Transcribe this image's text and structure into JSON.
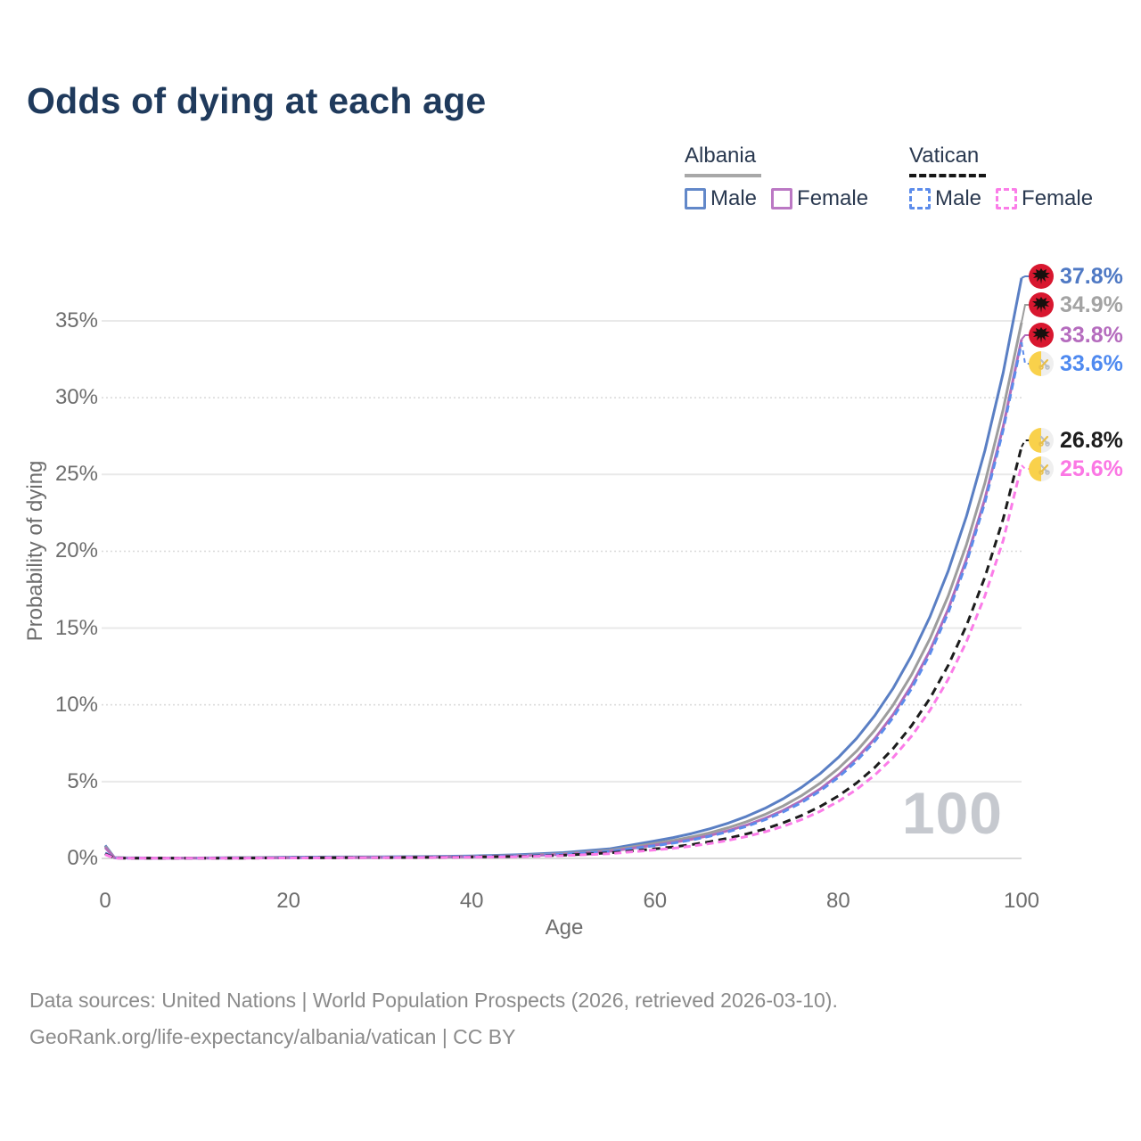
{
  "title": "Odds of dying at each age",
  "legend": {
    "groups": [
      {
        "label": "Albania",
        "line_style": "solid",
        "line_color": "#a8a8a8",
        "items": [
          {
            "label": "Male",
            "color": "#6288c9"
          },
          {
            "label": "Female",
            "color": "#bb78c4"
          }
        ]
      },
      {
        "label": "Vatican",
        "line_style": "dashed",
        "line_color": "#161616",
        "items": [
          {
            "label": "Male",
            "color": "#5c8ceb"
          },
          {
            "label": "Female",
            "color": "#fb7ce8"
          }
        ]
      }
    ]
  },
  "axes": {
    "x_label": "Age",
    "y_label": "Probability of dying",
    "x_ticks": [
      0,
      20,
      40,
      60,
      80,
      100
    ],
    "y_ticks": [
      "0%",
      "5%",
      "10%",
      "15%",
      "20%",
      "25%",
      "30%",
      "35%"
    ]
  },
  "watermark": "100",
  "chart_data": {
    "type": "line",
    "title": "Odds of dying at each age",
    "xlabel": "Age",
    "ylabel": "Probability of dying",
    "xlim": [
      0,
      100
    ],
    "ylim_pct": [
      0,
      38
    ],
    "grid": "horizontal-only",
    "legend_position": "top-right",
    "x": [
      0,
      1,
      2,
      5,
      10,
      15,
      20,
      25,
      30,
      35,
      40,
      45,
      50,
      55,
      60,
      62,
      64,
      66,
      68,
      70,
      72,
      74,
      76,
      78,
      80,
      82,
      84,
      86,
      88,
      90,
      92,
      94,
      96,
      98,
      100
    ],
    "series": [
      {
        "name": "Albania Male",
        "country": "Albania",
        "sex": "male",
        "flag": "albania",
        "color": "#5a7fc4",
        "label_color": "#4f79c4",
        "dashed": false,
        "end_label": "37.8%",
        "end_value_pct": 37.8,
        "values": [
          0.85,
          0.06,
          0.04,
          0.03,
          0.03,
          0.05,
          0.08,
          0.09,
          0.1,
          0.12,
          0.16,
          0.24,
          0.38,
          0.62,
          1.14,
          1.36,
          1.62,
          1.93,
          2.3,
          2.74,
          3.26,
          3.89,
          4.63,
          5.51,
          6.57,
          7.82,
          9.31,
          11.09,
          13.21,
          15.73,
          18.73,
          22.3,
          26.56,
          31.63,
          37.8
        ]
      },
      {
        "name": "Albania Both sexes",
        "country": "Albania",
        "sex": "both",
        "flag": "albania",
        "color": "#9d9d9d",
        "label_color": "#a3a3a3",
        "dashed": false,
        "end_label": "34.9%",
        "end_value_pct": 34.9,
        "values": [
          0.78,
          0.05,
          0.035,
          0.025,
          0.025,
          0.04,
          0.06,
          0.07,
          0.08,
          0.1,
          0.13,
          0.19,
          0.31,
          0.52,
          0.98,
          1.17,
          1.4,
          1.67,
          2.0,
          2.39,
          2.86,
          3.42,
          4.09,
          4.89,
          5.85,
          6.99,
          8.36,
          10.0,
          11.96,
          14.3,
          17.1,
          20.45,
          24.45,
          29.24,
          34.9
        ]
      },
      {
        "name": "Albania Female",
        "country": "Albania",
        "sex": "female",
        "flag": "albania",
        "color": "#b26cba",
        "label_color": "#b56cbe",
        "dashed": false,
        "end_label": "33.8%",
        "end_value_pct": 33.8,
        "values": [
          0.7,
          0.045,
          0.03,
          0.02,
          0.02,
          0.03,
          0.045,
          0.055,
          0.065,
          0.08,
          0.11,
          0.16,
          0.26,
          0.45,
          0.87,
          1.04,
          1.25,
          1.5,
          1.81,
          2.17,
          2.61,
          3.13,
          3.76,
          4.51,
          5.42,
          6.51,
          7.81,
          9.38,
          11.27,
          13.53,
          16.24,
          19.5,
          23.42,
          28.12,
          33.8
        ]
      },
      {
        "name": "Vatican Male",
        "country": "Vatican",
        "sex": "male",
        "flag": "vatican",
        "color": "#5c8ceb",
        "label_color": "#4f8af0",
        "dashed": true,
        "end_label": "33.6%",
        "end_value_pct": 33.6,
        "values": [
          0.35,
          0.03,
          0.02,
          0.015,
          0.015,
          0.025,
          0.05,
          0.06,
          0.07,
          0.09,
          0.12,
          0.17,
          0.27,
          0.46,
          0.83,
          1.0,
          1.2,
          1.45,
          1.74,
          2.09,
          2.52,
          3.03,
          3.64,
          4.38,
          5.27,
          6.35,
          7.64,
          9.19,
          11.06,
          13.31,
          16.01,
          19.27,
          23.18,
          27.9,
          33.6
        ]
      },
      {
        "name": "Vatican Both sexes",
        "country": "Vatican",
        "sex": "both",
        "flag": "vatican",
        "color": "#1c1c1c",
        "label_color": "#1c1c1c",
        "dashed": true,
        "end_label": "26.8%",
        "end_value_pct": 26.8,
        "values": [
          0.3,
          0.025,
          0.018,
          0.013,
          0.013,
          0.02,
          0.035,
          0.045,
          0.055,
          0.07,
          0.09,
          0.13,
          0.21,
          0.36,
          0.62,
          0.75,
          0.9,
          1.09,
          1.32,
          1.59,
          1.92,
          2.32,
          2.8,
          3.37,
          4.07,
          4.91,
          5.93,
          7.16,
          8.64,
          10.42,
          12.58,
          15.18,
          18.32,
          22.11,
          26.8
        ]
      },
      {
        "name": "Vatican Female",
        "country": "Vatican",
        "sex": "female",
        "flag": "vatican",
        "color": "#fb7ce8",
        "label_color": "#fb77e4",
        "dashed": true,
        "end_label": "25.6%",
        "end_value_pct": 25.6,
        "values": [
          0.25,
          0.02,
          0.015,
          0.01,
          0.01,
          0.018,
          0.03,
          0.04,
          0.05,
          0.06,
          0.08,
          0.11,
          0.18,
          0.31,
          0.55,
          0.66,
          0.8,
          0.97,
          1.18,
          1.43,
          1.73,
          2.09,
          2.53,
          3.06,
          3.71,
          4.49,
          5.43,
          6.58,
          7.96,
          9.64,
          11.67,
          14.12,
          17.1,
          20.7,
          25.6
        ]
      }
    ]
  },
  "footer": {
    "line1": "Data sources: United Nations | World Population Prospects (2026, retrieved 2026-03-10).",
    "line2": "GeoRank.org/life-expectancy/albania/vatican | CC BY"
  }
}
